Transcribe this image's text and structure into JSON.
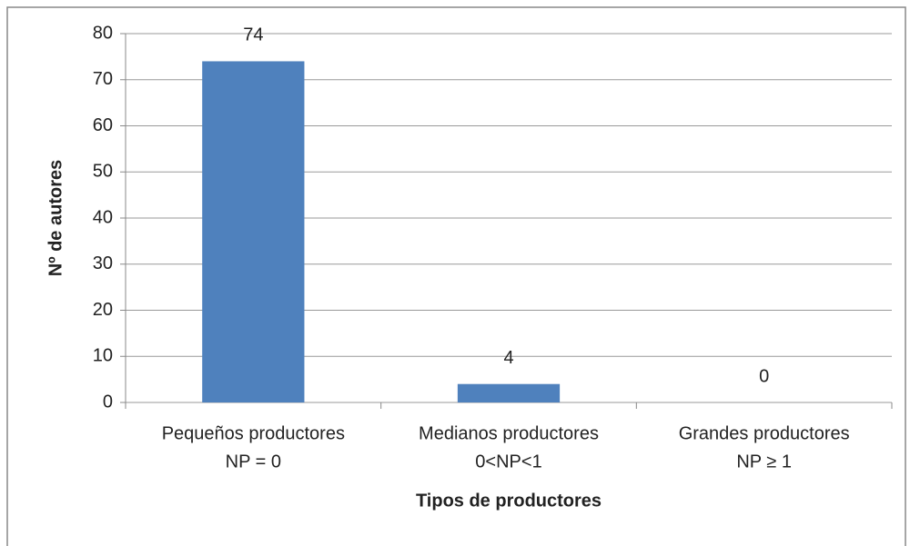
{
  "chart_data": {
    "type": "bar",
    "x_label": "Tipos de productores",
    "y_label": "Nº de autores",
    "categories": [
      [
        "Pequeños productores",
        "NP = 0"
      ],
      [
        "Medianos productores",
        "0<NP<1"
      ],
      [
        "Grandes productores",
        "NP ≥ 1"
      ]
    ],
    "values": [
      74,
      4,
      0
    ],
    "color": "#4f81bd",
    "ylim": [
      0,
      80
    ],
    "yticks": [
      0,
      10,
      20,
      30,
      40,
      50,
      60,
      70,
      80
    ],
    "grid": true
  }
}
